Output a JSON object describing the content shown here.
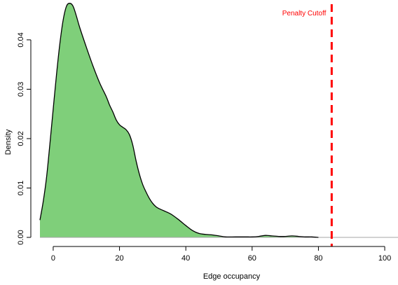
{
  "chart_data": {
    "type": "area",
    "title": "",
    "xlabel": "Edge occupancy",
    "ylabel": "Density",
    "xlim": [
      -4,
      104
    ],
    "ylim": [
      0,
      0.0475
    ],
    "x_ticks": [
      0,
      20,
      40,
      60,
      80,
      100
    ],
    "y_ticks": [
      0.0,
      0.01,
      0.02,
      0.03,
      0.04
    ],
    "x_tick_labels": [
      "0",
      "20",
      "40",
      "60",
      "80",
      "100"
    ],
    "y_tick_labels": [
      "0.00",
      "0.01",
      "0.02",
      "0.03",
      "0.04"
    ],
    "grid": false,
    "fill_color": "#7fcf7a",
    "line_color": "#000000",
    "series": [
      {
        "x": [
          -4,
          -3,
          -2,
          -1,
          0,
          1,
          2,
          3,
          4,
          5,
          6,
          7,
          8,
          10,
          12,
          14,
          16,
          17,
          18,
          19,
          20,
          21,
          22,
          23,
          24,
          25,
          26,
          27,
          28,
          29,
          30,
          31,
          32,
          33,
          34,
          35,
          36,
          38,
          40,
          42,
          44,
          46,
          48,
          50,
          52,
          55,
          58,
          60,
          62,
          64,
          66,
          68,
          70,
          72,
          74,
          76,
          78,
          80
        ],
        "y": [
          0.0035,
          0.0073,
          0.0122,
          0.0189,
          0.026,
          0.033,
          0.0392,
          0.044,
          0.0468,
          0.0474,
          0.0468,
          0.0448,
          0.0425,
          0.0385,
          0.0347,
          0.0313,
          0.0285,
          0.0268,
          0.0254,
          0.0238,
          0.0228,
          0.0223,
          0.0218,
          0.0208,
          0.0187,
          0.0155,
          0.0128,
          0.0107,
          0.0092,
          0.0079,
          0.0069,
          0.0062,
          0.0058,
          0.0055,
          0.0052,
          0.0049,
          0.0045,
          0.0035,
          0.0024,
          0.0014,
          0.0008,
          0.0006,
          0.0005,
          0.0003,
          0.0001,
          0.0001,
          0.0001,
          0.0001,
          0.0002,
          0.0004,
          0.0003,
          0.0002,
          0.0002,
          0.0003,
          0.0002,
          0.0001,
          0.0001,
          0.0
        ]
      }
    ],
    "annotations": [
      {
        "text": "Penalty Cutoff",
        "x": 84,
        "color": "#ff0000",
        "line_style": "dashed"
      }
    ]
  }
}
